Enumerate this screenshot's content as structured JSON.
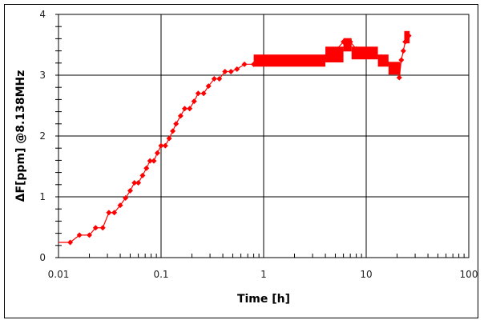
{
  "chart_data": {
    "type": "line",
    "title": "",
    "xlabel": "Time [h]",
    "ylabel": "ΔF[ppm] @8.138MHz",
    "xscale": "log",
    "xlim": [
      0.01,
      100
    ],
    "ylim": [
      0,
      4
    ],
    "xticks": [
      "0.01",
      "0.1",
      "1",
      "10",
      "100"
    ],
    "yticks": [
      "0",
      "1",
      "2",
      "3",
      "4"
    ],
    "grid": true,
    "legend": null,
    "series": [
      {
        "name": "ΔF",
        "color": "#ff0000",
        "marker": "diamond",
        "x": [
          0.0085,
          0.013,
          0.016,
          0.02,
          0.023,
          0.027,
          0.031,
          0.035,
          0.04,
          0.045,
          0.05,
          0.055,
          0.06,
          0.066,
          0.072,
          0.078,
          0.085,
          0.092,
          0.1,
          0.11,
          0.12,
          0.13,
          0.14,
          0.155,
          0.17,
          0.19,
          0.21,
          0.23,
          0.26,
          0.29,
          0.33,
          0.37,
          0.42,
          0.48,
          0.55,
          0.65,
          0.8,
          1.0,
          1.5,
          2.0,
          3.0,
          4.0,
          5.0,
          6.0,
          7.0,
          8.0,
          10.0,
          12.0,
          14.0,
          16.0,
          18.0,
          20.0,
          21.0,
          22.0,
          23.0,
          24.0,
          25.0,
          26.0
        ],
        "values": [
          0.25,
          0.25,
          0.37,
          0.37,
          0.49,
          0.49,
          0.74,
          0.74,
          0.86,
          0.98,
          1.1,
          1.23,
          1.23,
          1.35,
          1.47,
          1.59,
          1.59,
          1.72,
          1.84,
          1.84,
          1.96,
          2.08,
          2.2,
          2.33,
          2.45,
          2.45,
          2.57,
          2.7,
          2.7,
          2.82,
          2.94,
          2.94,
          3.06,
          3.06,
          3.1,
          3.18,
          3.18,
          3.25,
          3.25,
          3.25,
          3.25,
          3.3,
          3.4,
          3.55,
          3.55,
          3.43,
          3.4,
          3.35,
          3.3,
          3.2,
          3.1,
          3.1,
          2.96,
          3.25,
          3.4,
          3.55,
          3.65,
          3.65
        ]
      }
    ]
  }
}
